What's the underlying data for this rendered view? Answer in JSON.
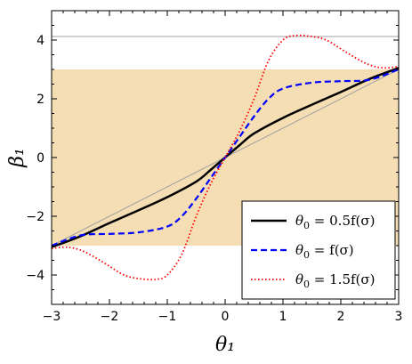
{
  "chart_data": {
    "type": "line",
    "xlabel": "θ₁",
    "ylabel": "β₁",
    "xlim": [
      -3.0,
      3.0
    ],
    "ylim": [
      -5.0,
      5.0
    ],
    "grid": false,
    "legend_position": "bottom-right",
    "x_ticks": [
      "−3",
      "−2",
      "−1",
      "0",
      "1",
      "2",
      "3"
    ],
    "y_ticks": [
      "−4",
      "−2",
      "0",
      "2",
      "4"
    ],
    "shaded_band": {
      "y_range": [
        -3.0,
        3.0
      ],
      "color": "#f5deb3"
    },
    "reference_lines": [
      {
        "kind": "horizontal",
        "y": 4.12,
        "color": "#a0a0a0"
      },
      {
        "kind": "diagonal",
        "from": [
          -3.0,
          -3.0
        ],
        "to": [
          3.0,
          3.0
        ],
        "color": "#a0a0a0"
      }
    ],
    "series": [
      {
        "name": "θ₀ = 0.5f(σ)",
        "label_main": "θ",
        "label_sub": "0",
        "label_rest": " = 0.5f(σ)",
        "color": "#000000",
        "style": "solid",
        "x": [
          -3.0,
          -2.5,
          -2.0,
          -1.5,
          -1.0,
          -0.5,
          -0.25,
          0.0,
          0.25,
          0.5,
          1.0,
          1.5,
          2.0,
          2.5,
          3.0
        ],
        "y": [
          -3.05,
          -2.68,
          -2.23,
          -1.8,
          -1.35,
          -0.82,
          -0.42,
          0.0,
          0.42,
          0.82,
          1.35,
          1.8,
          2.23,
          2.68,
          3.05
        ]
      },
      {
        "name": "θ₀ = f(σ)",
        "label_main": "θ",
        "label_sub": "0",
        "label_rest": " = f(σ)",
        "color": "#0000ff",
        "style": "dashed",
        "x": [
          -3.0,
          -2.5,
          -2.0,
          -1.5,
          -1.0,
          -0.75,
          -0.5,
          -0.25,
          0.0,
          0.25,
          0.5,
          0.75,
          1.0,
          1.5,
          2.0,
          2.5,
          3.0
        ],
        "y": [
          -3.0,
          -2.65,
          -2.6,
          -2.55,
          -2.35,
          -2.0,
          -1.4,
          -0.7,
          0.0,
          0.7,
          1.4,
          2.0,
          2.35,
          2.55,
          2.6,
          2.65,
          3.0
        ]
      },
      {
        "name": "θ₀ = 1.5f(σ)",
        "label_main": "θ",
        "label_sub": "0",
        "label_rest": " = 1.5f(σ)",
        "color": "#ff0000",
        "style": "dotted",
        "x": [
          -3.0,
          -2.75,
          -2.5,
          -2.25,
          -2.0,
          -1.75,
          -1.5,
          -1.2,
          -1.0,
          -0.75,
          -0.5,
          -0.25,
          0.0,
          0.25,
          0.5,
          0.75,
          1.0,
          1.2,
          1.5,
          1.75,
          2.0,
          2.25,
          2.5,
          2.75,
          3.0
        ],
        "y": [
          -3.1,
          -3.05,
          -3.15,
          -3.4,
          -3.7,
          -4.0,
          -4.12,
          -4.15,
          -4.0,
          -3.3,
          -2.0,
          -0.9,
          0.0,
          0.9,
          2.0,
          3.3,
          4.0,
          4.15,
          4.12,
          4.0,
          3.7,
          3.4,
          3.15,
          3.05,
          3.1
        ]
      }
    ]
  }
}
